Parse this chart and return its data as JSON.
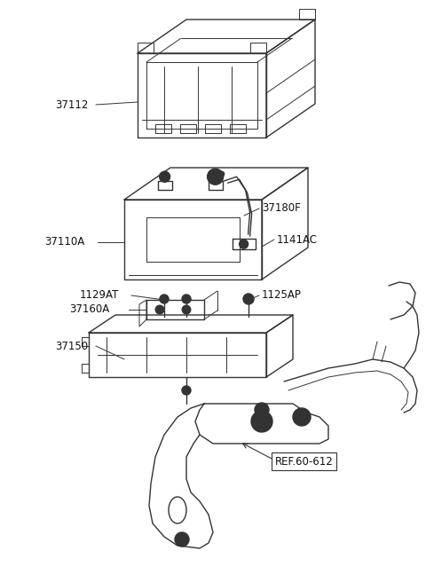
{
  "bg_color": "#ffffff",
  "line_color": "#333333",
  "label_color": "#111111",
  "figsize": [
    4.8,
    6.56
  ],
  "dpi": 100,
  "parts": {
    "cover_label": "37112",
    "battery_label": "37110A",
    "cable_label": "37180F",
    "bolt_label": "1141AC",
    "bolt2_label": "1129AT",
    "bracket_label": "37160A",
    "bolt3_label": "1125AP",
    "tray_label": "37150",
    "ref_label": "REF.60-612"
  }
}
